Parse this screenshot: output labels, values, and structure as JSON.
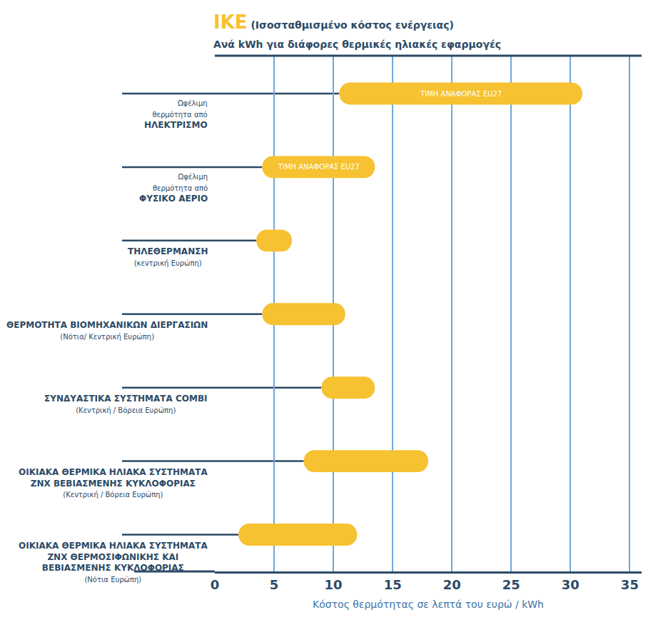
{
  "chart_data": {
    "type": "bar",
    "orientation": "horizontal",
    "title": "ΙΚΕ",
    "title_note": "(Ισοσταθμισμένο κόστος ενέργειας)",
    "subtitle": "Ανά kWh για διάφορες θερμικές ηλιακές εφαρμογές",
    "x_label": "Κόστος θερμότητας σε λεπτά του ευρώ / kWh",
    "categories": [
      "ΗΛΕΚΤΡΙΣΜΟ",
      "ΦΥΣΙΚΟ ΑΕΡΙΟ",
      "ΤΗΛΕΘΕΡΜΑΝΣΗ",
      "ΘΕΡΜΟΤΗΤΑ ΒΙΟΜΗΧΑΝΙΚΩΝ ΔΙΕΡΓΑΣΙΩΝ",
      "ΣΥΝΔΥΑΣΤΙΚΑ ΣΥΣΤΗΜΑΤΑ COMBI",
      "ΟΙΚΙΑΚΑ ΘΕΡΜΙΚΑ ΗΛΙΑΚΑ ΣΥΣΤΗΜΑΤΑ ΖΝΧ ΒΕΒΙΑΣΜΕΝΗΣ ΚΥΚΛΟΦΟΡΙΑΣ",
      "ΟΙΚΙΑΚΑ ΘΕΡΜΙΚΑ ΗΛΙΑΚΑ ΣΥΣΤΗΜΑΤΑ ΖΝΧ ΘΕΡΜΟΣΙΦΩΝΙΚΗΣ ΚΑΙ ΒΕΒΙΑΣΜΕΝΗΣ ΚΥΚΛΟΦΟΡΙΑΣ"
    ],
    "category_prefixes": [
      "Ωφέλιμη θερμότητα από",
      "Ωφέλιμη θερμότητα από",
      null,
      null,
      null,
      null,
      null
    ],
    "category_regions": [
      null,
      null,
      "(κεντρική Ευρώπη)",
      "(Νότια/ Κεντρική Ευρώπη)",
      "(Κεντρική / Βόρεια Ευρώπη)",
      "(Κεντρική / Βόρεια Ευρώπη)",
      "(Νότια Ευρώπη)"
    ],
    "low": [
      10.5,
      4,
      3.5,
      4,
      9,
      7.5,
      2
    ],
    "high": [
      31,
      13.5,
      6.5,
      11,
      13.5,
      18,
      12
    ],
    "bar_texts": [
      "ΤΙΜΗ ΑΝΑΦΟΡΑΣ EU27",
      "ΤΙΜΗ ΑΝΑΦΟΡΑΣ EU27",
      null,
      null,
      null,
      null,
      null
    ],
    "color": "#F6C231",
    "xlim": [
      0,
      36
    ],
    "xticks": [
      0,
      5,
      10,
      15,
      20,
      25,
      30,
      35
    ],
    "grid": true
  }
}
